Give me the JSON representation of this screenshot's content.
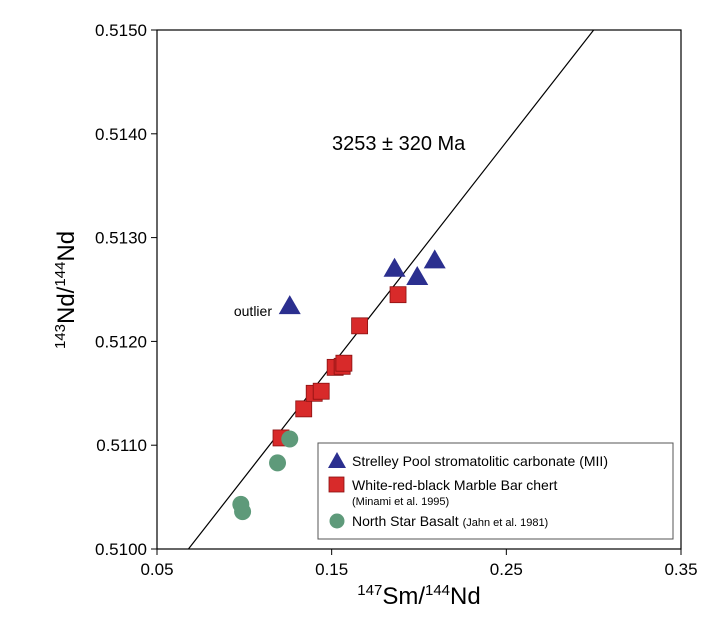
{
  "chart_data": {
    "type": "scatter",
    "xlabel": {
      "sup1": "147",
      "base1": "Sm/",
      "sup2": "144",
      "base2": "Nd"
    },
    "ylabel": {
      "sup1": "143",
      "base1": "Nd/",
      "sup2": "144",
      "base2": "Nd"
    },
    "xlim": [
      0.05,
      0.35
    ],
    "ylim": [
      0.51,
      0.515
    ],
    "x_ticks": [
      0.05,
      0.15,
      0.25,
      0.35
    ],
    "x_tick_labels": [
      "0.05",
      "0.15",
      "0.25",
      "0.35"
    ],
    "y_ticks": [
      0.51,
      0.511,
      0.512,
      0.513,
      0.514,
      0.515
    ],
    "y_tick_labels": [
      "0.5100",
      "0.5110",
      "0.5120",
      "0.5130",
      "0.5140",
      "0.5150"
    ],
    "grid": false,
    "annotation": "3253 ± 320 Ma",
    "outlier_label": "outlier",
    "isochron": {
      "x1": 0.068,
      "y1": 0.51,
      "x2": 0.3,
      "y2": 0.515
    },
    "legend_position": "bottom-right",
    "series": [
      {
        "name": "Strelley Pool stromatolitic carbonate (MII)",
        "name_note": "",
        "marker": "triangle",
        "color": "#2b2f8f",
        "points": [
          {
            "x": 0.126,
            "y": 0.51234
          },
          {
            "x": 0.186,
            "y": 0.5127
          },
          {
            "x": 0.199,
            "y": 0.51262
          },
          {
            "x": 0.209,
            "y": 0.51278
          }
        ]
      },
      {
        "name": "White-red-black Marble Bar chert",
        "name_note": "(Minami et al. 1995)",
        "marker": "square",
        "color": "#d82a2a",
        "points": [
          {
            "x": 0.121,
            "y": 0.51107
          },
          {
            "x": 0.134,
            "y": 0.51135
          },
          {
            "x": 0.14,
            "y": 0.5115
          },
          {
            "x": 0.144,
            "y": 0.51152
          },
          {
            "x": 0.152,
            "y": 0.51175
          },
          {
            "x": 0.156,
            "y": 0.51176
          },
          {
            "x": 0.157,
            "y": 0.51179
          },
          {
            "x": 0.166,
            "y": 0.51215
          },
          {
            "x": 0.188,
            "y": 0.51245
          }
        ]
      },
      {
        "name": "North Star Basalt",
        "name_note": "(Jahn et al. 1981)",
        "marker": "circle",
        "color": "#5e9a7a",
        "points": [
          {
            "x": 0.098,
            "y": 0.51043
          },
          {
            "x": 0.099,
            "y": 0.51036
          },
          {
            "x": 0.119,
            "y": 0.51083
          },
          {
            "x": 0.126,
            "y": 0.51106
          }
        ]
      }
    ]
  }
}
